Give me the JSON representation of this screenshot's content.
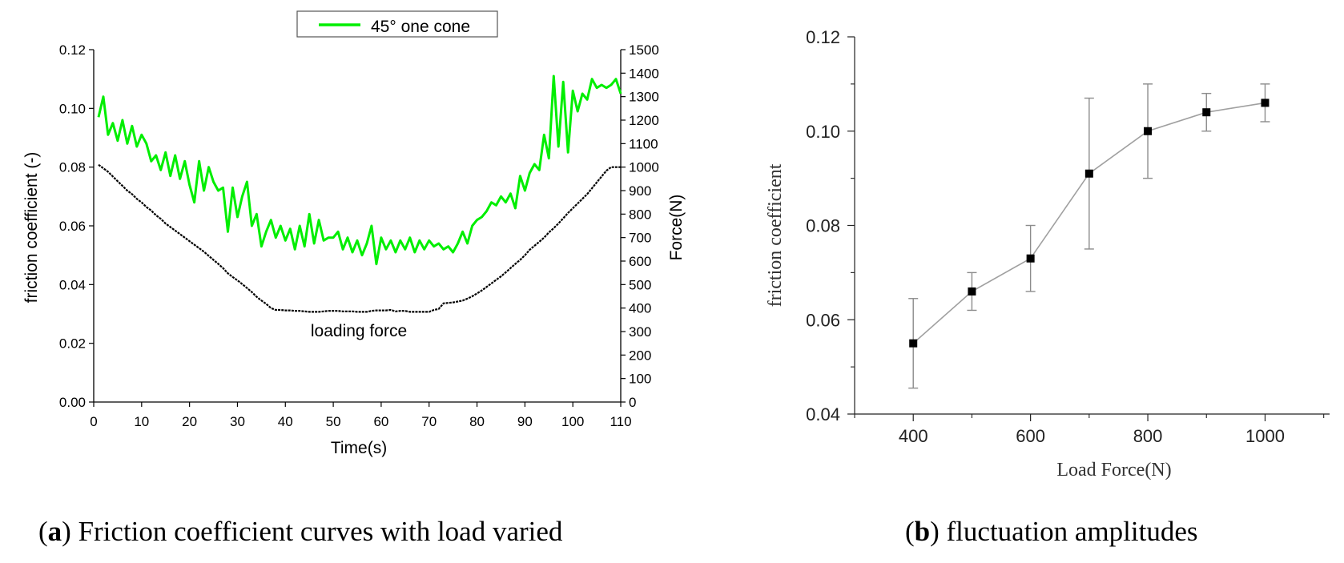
{
  "captions": {
    "a_letter": "a",
    "a_text": "Friction coefficient curves with load varied",
    "b_letter": "b",
    "b_text": "fluctuation amplitudes"
  },
  "colors": {
    "friction": "#00ee00",
    "force": "#000000",
    "errorbar": "#8c8c8c",
    "connector": "#a0a0a0"
  },
  "chart_data": [
    {
      "id": "a",
      "type": "line",
      "legend_label": "45° one cone",
      "legend_position": "top-center",
      "xlabel": "Time(s)",
      "ylabel_left": "friction  coefficient (-)",
      "ylabel_right": "Force(N)",
      "annotation": "loading force",
      "xlim": [
        0,
        110
      ],
      "ylim_left": [
        0,
        0.12
      ],
      "ylim_right": [
        0,
        1500
      ],
      "x_ticks": [
        0,
        10,
        20,
        30,
        40,
        50,
        60,
        70,
        80,
        90,
        100,
        110
      ],
      "y_ticks_left": [
        "0.00",
        "0.02",
        "0.04",
        "0.06",
        "0.08",
        "0.10",
        "0.12"
      ],
      "y_ticks_right": [
        0,
        100,
        200,
        300,
        400,
        500,
        600,
        700,
        800,
        900,
        1000,
        1100,
        1200,
        1300,
        1400,
        1500
      ],
      "series": [
        {
          "name": "45° one cone",
          "axis": "left",
          "x": [
            1,
            2,
            3,
            4,
            5,
            6,
            7,
            8,
            9,
            10,
            11,
            12,
            13,
            14,
            15,
            16,
            17,
            18,
            19,
            20,
            21,
            22,
            23,
            24,
            25,
            26,
            27,
            28,
            29,
            30,
            31,
            32,
            33,
            34,
            35,
            36,
            37,
            38,
            39,
            40,
            41,
            42,
            43,
            44,
            45,
            46,
            47,
            48,
            49,
            50,
            51,
            52,
            53,
            54,
            55,
            56,
            57,
            58,
            59,
            60,
            61,
            62,
            63,
            64,
            65,
            66,
            67,
            68,
            69,
            70,
            71,
            72,
            73,
            74,
            75,
            76,
            77,
            78,
            79,
            80,
            81,
            82,
            83,
            84,
            85,
            86,
            87,
            88,
            89,
            90,
            91,
            92,
            93,
            94,
            95,
            96,
            97,
            98,
            99,
            100,
            101,
            102,
            103,
            104,
            105,
            106,
            107,
            108,
            109,
            110
          ],
          "y": [
            0.097,
            0.104,
            0.091,
            0.095,
            0.089,
            0.096,
            0.088,
            0.094,
            0.087,
            0.091,
            0.088,
            0.082,
            0.084,
            0.079,
            0.085,
            0.077,
            0.084,
            0.076,
            0.082,
            0.074,
            0.068,
            0.082,
            0.072,
            0.08,
            0.075,
            0.072,
            0.073,
            0.058,
            0.073,
            0.063,
            0.07,
            0.075,
            0.06,
            0.064,
            0.053,
            0.058,
            0.062,
            0.056,
            0.06,
            0.055,
            0.059,
            0.052,
            0.06,
            0.053,
            0.064,
            0.054,
            0.062,
            0.055,
            0.056,
            0.056,
            0.058,
            0.052,
            0.056,
            0.051,
            0.055,
            0.05,
            0.054,
            0.06,
            0.047,
            0.056,
            0.052,
            0.055,
            0.051,
            0.055,
            0.052,
            0.056,
            0.051,
            0.055,
            0.052,
            0.055,
            0.053,
            0.054,
            0.052,
            0.053,
            0.051,
            0.054,
            0.058,
            0.054,
            0.06,
            0.062,
            0.063,
            0.065,
            0.068,
            0.067,
            0.07,
            0.068,
            0.071,
            0.066,
            0.077,
            0.072,
            0.078,
            0.081,
            0.079,
            0.091,
            0.083,
            0.111,
            0.087,
            0.109,
            0.085,
            0.106,
            0.099,
            0.105,
            0.103,
            0.11,
            0.107,
            0.108,
            0.107,
            0.108,
            0.11,
            0.105
          ]
        },
        {
          "name": "loading force",
          "axis": "right",
          "x": [
            1,
            2,
            3,
            4,
            5,
            6,
            7,
            8,
            9,
            10,
            11,
            12,
            13,
            14,
            15,
            16,
            17,
            18,
            19,
            20,
            21,
            22,
            23,
            24,
            25,
            26,
            27,
            28,
            29,
            30,
            31,
            32,
            33,
            34,
            35,
            36,
            37,
            38,
            39,
            40,
            41,
            42,
            43,
            44,
            45,
            46,
            47,
            48,
            49,
            50,
            51,
            52,
            53,
            54,
            55,
            56,
            57,
            58,
            59,
            60,
            61,
            62,
            63,
            64,
            65,
            66,
            67,
            68,
            69,
            70,
            71,
            72,
            73,
            74,
            75,
            76,
            77,
            78,
            79,
            80,
            81,
            82,
            83,
            84,
            85,
            86,
            87,
            88,
            89,
            90,
            91,
            92,
            93,
            94,
            95,
            96,
            97,
            98,
            99,
            100,
            101,
            102,
            103,
            104,
            105,
            106,
            107,
            108,
            109,
            110
          ],
          "y": [
            1010,
            995,
            980,
            960,
            940,
            920,
            900,
            885,
            865,
            850,
            830,
            815,
            795,
            780,
            760,
            745,
            730,
            715,
            700,
            685,
            670,
            655,
            640,
            622,
            605,
            588,
            570,
            548,
            532,
            518,
            502,
            485,
            468,
            448,
            432,
            418,
            400,
            392,
            392,
            390,
            390,
            388,
            388,
            386,
            384,
            384,
            384,
            386,
            388,
            388,
            388,
            386,
            386,
            386,
            384,
            384,
            384,
            388,
            390,
            390,
            390,
            392,
            386,
            388,
            388,
            384,
            384,
            384,
            384,
            384,
            392,
            396,
            420,
            422,
            424,
            428,
            432,
            440,
            450,
            462,
            475,
            490,
            505,
            520,
            535,
            552,
            570,
            588,
            605,
            625,
            648,
            665,
            682,
            700,
            722,
            740,
            760,
            782,
            805,
            825,
            845,
            865,
            885,
            910,
            935,
            960,
            985,
            1000,
            1000,
            1000
          ]
        }
      ]
    },
    {
      "id": "b",
      "type": "line",
      "subtype": "line with error bars",
      "xlabel": "Load Force(N)",
      "ylabel": "friction coefficient",
      "xlim": [
        300,
        1110
      ],
      "ylim": [
        0.04,
        0.12
      ],
      "x_ticks": [
        400,
        600,
        800,
        1000
      ],
      "y_ticks": [
        "0.04",
        "0.06",
        "0.08",
        "0.10",
        "0.12"
      ],
      "x": [
        400,
        500,
        600,
        700,
        800,
        900,
        1000
      ],
      "y": [
        0.055,
        0.066,
        0.073,
        0.091,
        0.1,
        0.104,
        0.106
      ],
      "err_low": [
        0.0455,
        0.062,
        0.066,
        0.075,
        0.09,
        0.1,
        0.102
      ],
      "err_high": [
        0.0645,
        0.07,
        0.08,
        0.107,
        0.11,
        0.108,
        0.11
      ]
    }
  ]
}
